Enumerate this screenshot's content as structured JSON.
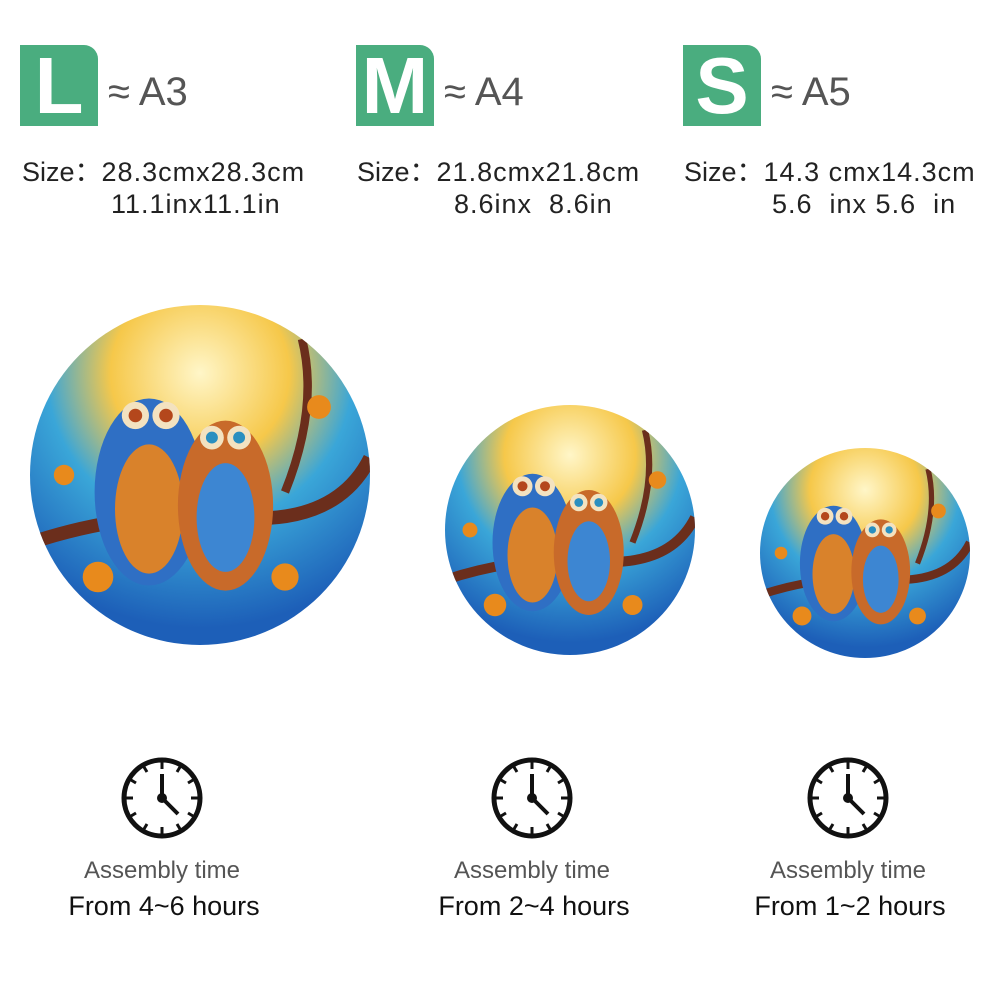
{
  "colors": {
    "badge": "#4aad7f",
    "text": "#222222",
    "subtext": "#555555"
  },
  "sizes": [
    {
      "letter": "L",
      "paper": "≈ A3",
      "size_label": "Size：",
      "cm": "28.3cmx28.3cm",
      "inch": "11.1inx11.1in",
      "assembly_label": "Assembly time",
      "assembly_hours": "From 4~6 hours",
      "icon": "clock-icon"
    },
    {
      "letter": "M",
      "paper": "≈ A4",
      "size_label": "Size：",
      "cm": "21.8cmx21.8cm",
      "inch": "8.6inx  8.6in",
      "assembly_label": "Assembly time",
      "assembly_hours": "From 2~4 hours",
      "icon": "clock-icon"
    },
    {
      "letter": "S",
      "paper": "≈ A5",
      "size_label": "Size：",
      "cm": "14.3 cmx14.3cm",
      "inch": "5.6  inx 5.6  in",
      "assembly_label": "Assembly time",
      "assembly_hours": "From 1~2 hours",
      "icon": "clock-icon"
    }
  ]
}
